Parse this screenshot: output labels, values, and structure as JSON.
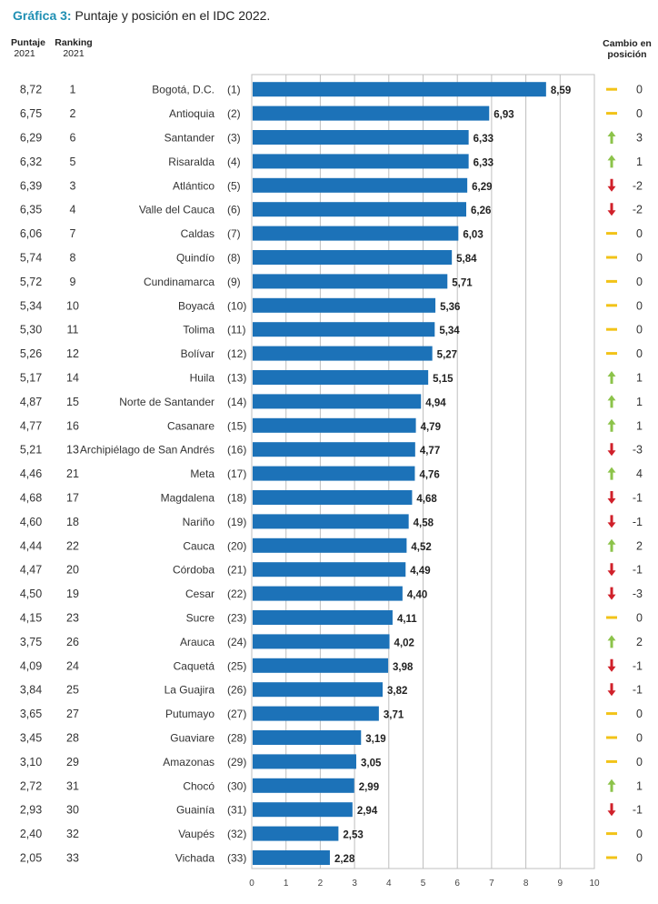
{
  "title": {
    "prefix": "Gráfica 3:",
    "text": "Puntaje y posición en el IDC 2022."
  },
  "headers": {
    "score": "Puntaje",
    "score_year": "2021",
    "rank": "Ranking",
    "rank_year": "2021",
    "change_line1": "Cambio en",
    "change_line2": "posición"
  },
  "colors": {
    "bar": "#1c72b8",
    "up": "#8cc34a",
    "down": "#d0202a",
    "same": "#f2c318",
    "title_accent": "#1f8fb3",
    "grid": "#bfbfbf"
  },
  "chart_data": {
    "type": "bar",
    "orientation": "horizontal",
    "title": "Puntaje y posición en el IDC 2022.",
    "xlim": [
      0,
      10
    ],
    "x_ticks": [
      0,
      1,
      2,
      3,
      4,
      5,
      6,
      7,
      8,
      9,
      10
    ],
    "grid": true,
    "rows": [
      {
        "score_2021": "8,72",
        "rank_2021": "1",
        "name": "Bogotá, D.C.",
        "pos": "(1)",
        "value": 8.59,
        "label": "8,59",
        "change": "0",
        "dir": "same"
      },
      {
        "score_2021": "6,75",
        "rank_2021": "2",
        "name": "Antioquia",
        "pos": "(2)",
        "value": 6.93,
        "label": "6,93",
        "change": "0",
        "dir": "same"
      },
      {
        "score_2021": "6,29",
        "rank_2021": "6",
        "name": "Santander",
        "pos": "(3)",
        "value": 6.33,
        "label": "6,33",
        "change": "3",
        "dir": "up"
      },
      {
        "score_2021": "6,32",
        "rank_2021": "5",
        "name": "Risaralda",
        "pos": "(4)",
        "value": 6.33,
        "label": "6,33",
        "change": "1",
        "dir": "up"
      },
      {
        "score_2021": "6,39",
        "rank_2021": "3",
        "name": "Atlántico",
        "pos": "(5)",
        "value": 6.29,
        "label": "6,29",
        "change": "-2",
        "dir": "down"
      },
      {
        "score_2021": "6,35",
        "rank_2021": "4",
        "name": "Valle del Cauca",
        "pos": "(6)",
        "value": 6.26,
        "label": "6,26",
        "change": "-2",
        "dir": "down"
      },
      {
        "score_2021": "6,06",
        "rank_2021": "7",
        "name": "Caldas",
        "pos": "(7)",
        "value": 6.03,
        "label": "6,03",
        "change": "0",
        "dir": "same"
      },
      {
        "score_2021": "5,74",
        "rank_2021": "8",
        "name": "Quindío",
        "pos": "(8)",
        "value": 5.84,
        "label": "5,84",
        "change": "0",
        "dir": "same"
      },
      {
        "score_2021": "5,72",
        "rank_2021": "9",
        "name": "Cundinamarca",
        "pos": "(9)",
        "value": 5.71,
        "label": "5,71",
        "change": "0",
        "dir": "same"
      },
      {
        "score_2021": "5,34",
        "rank_2021": "10",
        "name": "Boyacá",
        "pos": "(10)",
        "value": 5.36,
        "label": "5,36",
        "change": "0",
        "dir": "same"
      },
      {
        "score_2021": "5,30",
        "rank_2021": "11",
        "name": "Tolima",
        "pos": "(11)",
        "value": 5.34,
        "label": "5,34",
        "change": "0",
        "dir": "same"
      },
      {
        "score_2021": "5,26",
        "rank_2021": "12",
        "name": "Bolívar",
        "pos": "(12)",
        "value": 5.27,
        "label": "5,27",
        "change": "0",
        "dir": "same"
      },
      {
        "score_2021": "5,17",
        "rank_2021": "14",
        "name": "Huila",
        "pos": "(13)",
        "value": 5.15,
        "label": "5,15",
        "change": "1",
        "dir": "up"
      },
      {
        "score_2021": "4,87",
        "rank_2021": "15",
        "name": "Norte de Santander",
        "pos": "(14)",
        "value": 4.94,
        "label": "4,94",
        "change": "1",
        "dir": "up"
      },
      {
        "score_2021": "4,77",
        "rank_2021": "16",
        "name": "Casanare",
        "pos": "(15)",
        "value": 4.79,
        "label": "4,79",
        "change": "1",
        "dir": "up"
      },
      {
        "score_2021": "5,21",
        "rank_2021": "13",
        "name": "Archipiélago de San Andrés",
        "pos": "(16)",
        "value": 4.77,
        "label": "4,77",
        "change": "-3",
        "dir": "down"
      },
      {
        "score_2021": "4,46",
        "rank_2021": "21",
        "name": "Meta",
        "pos": "(17)",
        "value": 4.76,
        "label": "4,76",
        "change": "4",
        "dir": "up"
      },
      {
        "score_2021": "4,68",
        "rank_2021": "17",
        "name": "Magdalena",
        "pos": "(18)",
        "value": 4.68,
        "label": "4,68",
        "change": "-1",
        "dir": "down"
      },
      {
        "score_2021": "4,60",
        "rank_2021": "18",
        "name": "Nariño",
        "pos": "(19)",
        "value": 4.58,
        "label": "4,58",
        "change": "-1",
        "dir": "down"
      },
      {
        "score_2021": "4,44",
        "rank_2021": "22",
        "name": "Cauca",
        "pos": "(20)",
        "value": 4.52,
        "label": "4,52",
        "change": "2",
        "dir": "up"
      },
      {
        "score_2021": "4,47",
        "rank_2021": "20",
        "name": "Córdoba",
        "pos": "(21)",
        "value": 4.49,
        "label": "4,49",
        "change": "-1",
        "dir": "down"
      },
      {
        "score_2021": "4,50",
        "rank_2021": "19",
        "name": "Cesar",
        "pos": "(22)",
        "value": 4.4,
        "label": "4,40",
        "change": "-3",
        "dir": "down"
      },
      {
        "score_2021": "4,15",
        "rank_2021": "23",
        "name": "Sucre",
        "pos": "(23)",
        "value": 4.11,
        "label": "4,11",
        "change": "0",
        "dir": "same"
      },
      {
        "score_2021": "3,75",
        "rank_2021": "26",
        "name": "Arauca",
        "pos": "(24)",
        "value": 4.02,
        "label": "4,02",
        "change": "2",
        "dir": "up"
      },
      {
        "score_2021": "4,09",
        "rank_2021": "24",
        "name": "Caquetá",
        "pos": "(25)",
        "value": 3.98,
        "label": "3,98",
        "change": "-1",
        "dir": "down"
      },
      {
        "score_2021": "3,84",
        "rank_2021": "25",
        "name": "La Guajira",
        "pos": "(26)",
        "value": 3.82,
        "label": "3,82",
        "change": "-1",
        "dir": "down"
      },
      {
        "score_2021": "3,65",
        "rank_2021": "27",
        "name": "Putumayo",
        "pos": "(27)",
        "value": 3.71,
        "label": "3,71",
        "change": "0",
        "dir": "same"
      },
      {
        "score_2021": "3,45",
        "rank_2021": "28",
        "name": "Guaviare",
        "pos": "(28)",
        "value": 3.19,
        "label": "3,19",
        "change": "0",
        "dir": "same"
      },
      {
        "score_2021": "3,10",
        "rank_2021": "29",
        "name": "Amazonas",
        "pos": "(29)",
        "value": 3.05,
        "label": "3,05",
        "change": "0",
        "dir": "same"
      },
      {
        "score_2021": "2,72",
        "rank_2021": "31",
        "name": "Chocó",
        "pos": "(30)",
        "value": 2.99,
        "label": "2,99",
        "change": "1",
        "dir": "up"
      },
      {
        "score_2021": "2,93",
        "rank_2021": "30",
        "name": "Guainía",
        "pos": "(31)",
        "value": 2.94,
        "label": "2,94",
        "change": "-1",
        "dir": "down"
      },
      {
        "score_2021": "2,40",
        "rank_2021": "32",
        "name": "Vaupés",
        "pos": "(32)",
        "value": 2.53,
        "label": "2,53",
        "change": "0",
        "dir": "same"
      },
      {
        "score_2021": "2,05",
        "rank_2021": "33",
        "name": "Vichada",
        "pos": "(33)",
        "value": 2.28,
        "label": "2,28",
        "change": "0",
        "dir": "same"
      }
    ]
  }
}
